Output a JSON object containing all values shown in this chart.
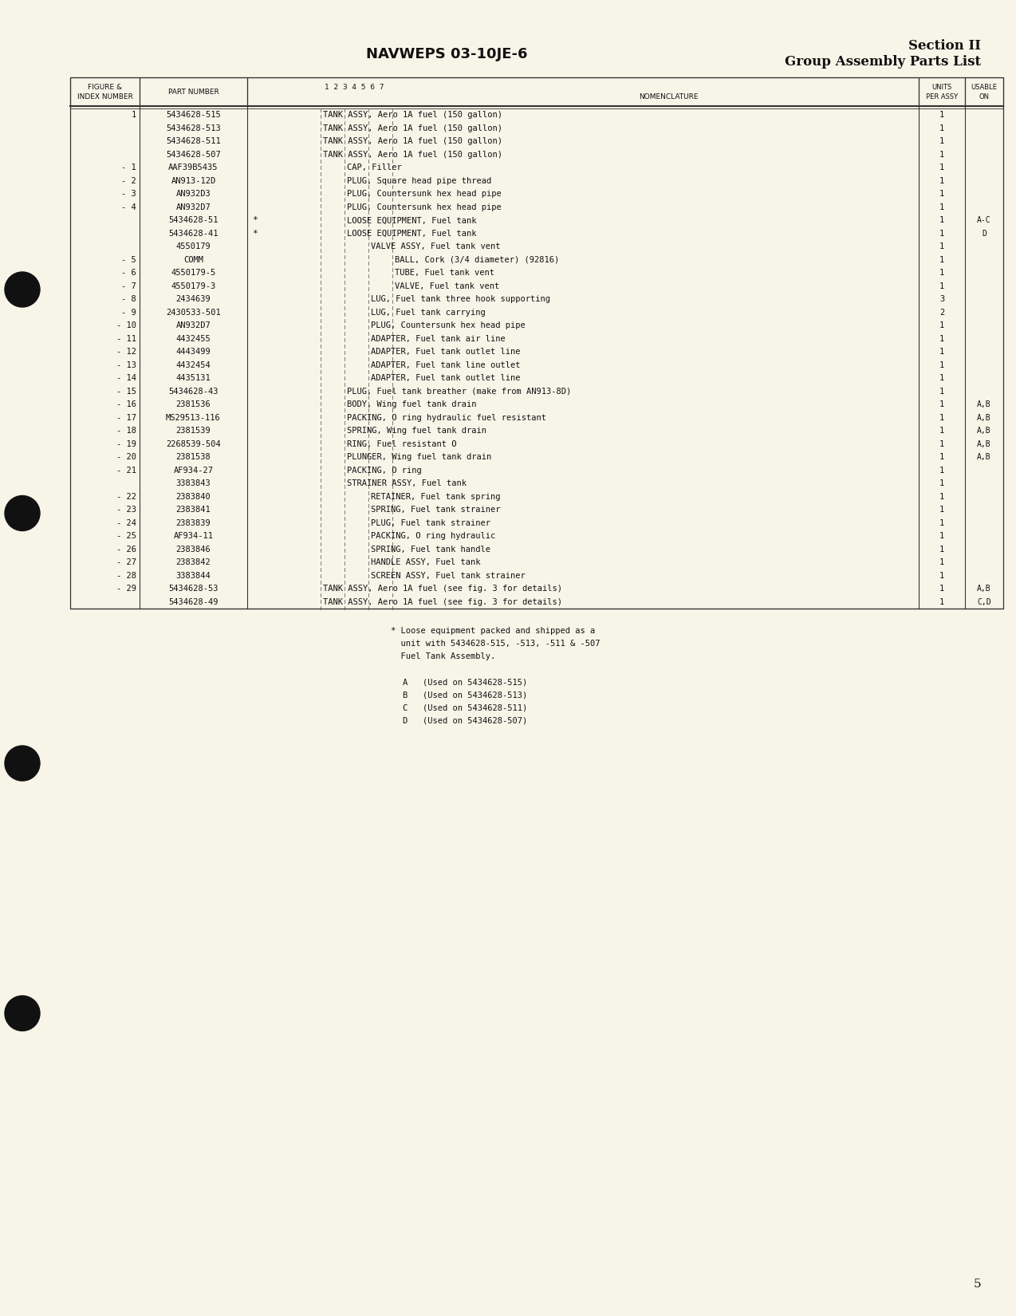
{
  "page_title": "NAVWEPS 03-10JE-6",
  "section_title": "Section II",
  "section_subtitle": "Group Assembly Parts List",
  "page_number": "5",
  "bg_color": "#f7f4e8",
  "rows": [
    {
      "fig": "1",
      "part": "5434628-515",
      "indent": 0,
      "nom": "TANK ASSY, Aero 1A fuel (150 gallon)",
      "units": "1",
      "usable": ""
    },
    {
      "fig": "",
      "part": "5434628-513",
      "indent": 0,
      "nom": "TANK ASSY, Aero 1A fuel (150 gallon)",
      "units": "1",
      "usable": ""
    },
    {
      "fig": "",
      "part": "5434628-511",
      "indent": 0,
      "nom": "TANK ASSY, Aero 1A fuel (150 gallon)",
      "units": "1",
      "usable": ""
    },
    {
      "fig": "",
      "part": "5434628-507",
      "indent": 0,
      "nom": "TANK ASSY, Aero 1A fuel (150 gallon)",
      "units": "1",
      "usable": ""
    },
    {
      "fig": "- 1",
      "part": "AAF39B5435",
      "indent": 1,
      "nom": "CAP, Filler",
      "units": "1",
      "usable": ""
    },
    {
      "fig": "- 2",
      "part": "AN913-12D",
      "indent": 1,
      "nom": "PLUG, Square head pipe thread",
      "units": "1",
      "usable": ""
    },
    {
      "fig": "- 3",
      "part": "AN932D3",
      "indent": 1,
      "nom": "PLUG, Countersunk hex head pipe",
      "units": "1",
      "usable": ""
    },
    {
      "fig": "- 4",
      "part": "AN932D7",
      "indent": 1,
      "nom": "PLUG, Countersunk hex head pipe",
      "units": "1",
      "usable": ""
    },
    {
      "fig": "",
      "part": "5434628-51",
      "indent": 1,
      "nom": "LOOSE EQUIPMENT, Fuel tank",
      "units": "1",
      "usable": "A-C",
      "star": true
    },
    {
      "fig": "",
      "part": "5434628-41",
      "indent": 1,
      "nom": "LOOSE EQUIPMENT, Fuel tank",
      "units": "1",
      "usable": "D",
      "star": true
    },
    {
      "fig": "",
      "part": "4550179",
      "indent": 2,
      "nom": "VALVE ASSY, Fuel tank vent",
      "units": "1",
      "usable": ""
    },
    {
      "fig": "- 5",
      "part": "COMM",
      "indent": 3,
      "nom": "BALL, Cork (3/4 diameter) (92816)",
      "units": "1",
      "usable": ""
    },
    {
      "fig": "- 6",
      "part": "4550179-5",
      "indent": 3,
      "nom": "TUBE, Fuel tank vent",
      "units": "1",
      "usable": ""
    },
    {
      "fig": "- 7",
      "part": "4550179-3",
      "indent": 3,
      "nom": "VALVE, Fuel tank vent",
      "units": "1",
      "usable": ""
    },
    {
      "fig": "- 8",
      "part": "2434639",
      "indent": 2,
      "nom": "LUG, Fuel tank three hook supporting",
      "units": "3",
      "usable": ""
    },
    {
      "fig": "- 9",
      "part": "2430533-501",
      "indent": 2,
      "nom": "LUG, Fuel tank carrying",
      "units": "2",
      "usable": ""
    },
    {
      "fig": "- 10",
      "part": "AN932D7",
      "indent": 2,
      "nom": "PLUG, Countersunk hex head pipe",
      "units": "1",
      "usable": ""
    },
    {
      "fig": "- 11",
      "part": "4432455",
      "indent": 2,
      "nom": "ADAPTER, Fuel tank air line",
      "units": "1",
      "usable": ""
    },
    {
      "fig": "- 12",
      "part": "4443499",
      "indent": 2,
      "nom": "ADAPTER, Fuel tank outlet line",
      "units": "1",
      "usable": ""
    },
    {
      "fig": "- 13",
      "part": "4432454",
      "indent": 2,
      "nom": "ADAPTER, Fuel tank line outlet",
      "units": "1",
      "usable": ""
    },
    {
      "fig": "- 14",
      "part": "4435131",
      "indent": 2,
      "nom": "ADAPTER, Fuel tank outlet line",
      "units": "1",
      "usable": ""
    },
    {
      "fig": "- 15",
      "part": "5434628-43",
      "indent": 1,
      "nom": "PLUG, Fuel tank breather (make from AN913-8D)",
      "units": "1",
      "usable": ""
    },
    {
      "fig": "- 16",
      "part": "2381536",
      "indent": 1,
      "nom": "BODY, Wing fuel tank drain",
      "units": "1",
      "usable": "A,B"
    },
    {
      "fig": "- 17",
      "part": "MS29513-116",
      "indent": 1,
      "nom": "PACKING, O ring hydraulic fuel resistant",
      "units": "1",
      "usable": "A,B"
    },
    {
      "fig": "- 18",
      "part": "2381539",
      "indent": 1,
      "nom": "SPRING, Wing fuel tank drain",
      "units": "1",
      "usable": "A,B"
    },
    {
      "fig": "- 19",
      "part": "2268539-504",
      "indent": 1,
      "nom": "RING, Fuel resistant O",
      "units": "1",
      "usable": "A,B"
    },
    {
      "fig": "- 20",
      "part": "2381538",
      "indent": 1,
      "nom": "PLUNGER, Wing fuel tank drain",
      "units": "1",
      "usable": "A,B"
    },
    {
      "fig": "- 21",
      "part": "AF934-27",
      "indent": 1,
      "nom": "PACKING, O ring",
      "units": "1",
      "usable": ""
    },
    {
      "fig": "",
      "part": "3383843",
      "indent": 1,
      "nom": "STRAINER ASSY, Fuel tank",
      "units": "1",
      "usable": ""
    },
    {
      "fig": "- 22",
      "part": "2383840",
      "indent": 2,
      "nom": "RETAINER, Fuel tank spring",
      "units": "1",
      "usable": ""
    },
    {
      "fig": "- 23",
      "part": "2383841",
      "indent": 2,
      "nom": "SPRING, Fuel tank strainer",
      "units": "1",
      "usable": ""
    },
    {
      "fig": "- 24",
      "part": "2383839",
      "indent": 2,
      "nom": "PLUG, Fuel tank strainer",
      "units": "1",
      "usable": ""
    },
    {
      "fig": "- 25",
      "part": "AF934-11",
      "indent": 2,
      "nom": "PACKING, O ring hydraulic",
      "units": "1",
      "usable": ""
    },
    {
      "fig": "- 26",
      "part": "2383846",
      "indent": 2,
      "nom": "SPRING, Fuel tank handle",
      "units": "1",
      "usable": ""
    },
    {
      "fig": "- 27",
      "part": "2383842",
      "indent": 2,
      "nom": "HANDLE ASSY, Fuel tank",
      "units": "1",
      "usable": ""
    },
    {
      "fig": "- 28",
      "part": "3383844",
      "indent": 2,
      "nom": "SCREEN ASSY, Fuel tank strainer",
      "units": "1",
      "usable": ""
    },
    {
      "fig": "- 29",
      "part": "5434628-53",
      "indent": 0,
      "nom": "TANK ASSY, Aero 1A fuel (see fig. 3 for details)",
      "units": "1",
      "usable": "A,B"
    },
    {
      "fig": "",
      "part": "5434628-49",
      "indent": 0,
      "nom": "TANK ASSY, Aero 1A fuel (see fig. 3 for details)",
      "units": "1",
      "usable": "C,D"
    }
  ],
  "footnote_lines": [
    "* Loose equipment packed and shipped as a",
    "  unit with 5434628-515, -513, -511 & -507",
    "  Fuel Tank Assembly."
  ],
  "footnote_letters": [
    "A   (Used on 5434628-515)",
    "B   (Used on 5434628-513)",
    "C   (Used on 5434628-511)",
    "D   (Used on 5434628-507)"
  ]
}
